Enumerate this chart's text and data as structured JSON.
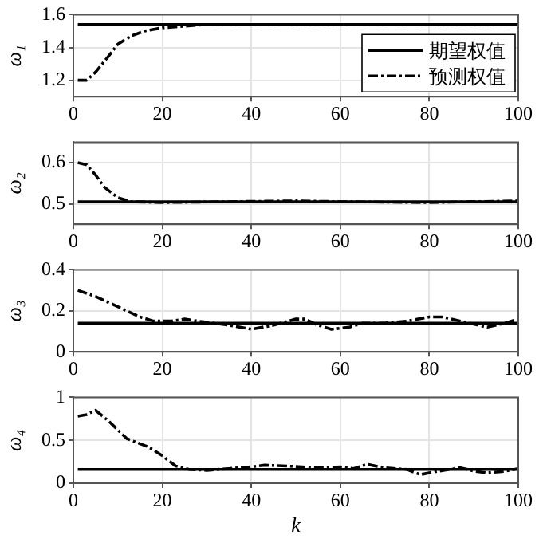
{
  "chart_data": [
    {
      "type": "line",
      "ylabel": "ω₁",
      "xlim": [
        0,
        100
      ],
      "xticks": [
        0,
        20,
        40,
        60,
        80,
        100
      ],
      "ylim": [
        1.1,
        1.6
      ],
      "yticks": [
        1.2,
        1.4,
        1.6
      ],
      "grid": true,
      "legend": "bottom right",
      "marker": "none",
      "series": [
        {
          "name": "期望权值",
          "color": "#000000",
          "line_style": "solid",
          "x": [
            1,
            100
          ],
          "values": [
            1.54,
            1.54
          ]
        },
        {
          "name": "预测权值",
          "color": "#000000",
          "line_style": "dashdot",
          "x": [
            1,
            3,
            5,
            8,
            10,
            13,
            16,
            20,
            25,
            30,
            50,
            100
          ],
          "values": [
            1.2,
            1.2,
            1.25,
            1.35,
            1.42,
            1.47,
            1.5,
            1.52,
            1.53,
            1.54,
            1.54,
            1.54
          ]
        }
      ]
    },
    {
      "type": "line",
      "ylabel": "ω₂",
      "xlim": [
        0,
        100
      ],
      "xticks": [
        0,
        20,
        40,
        60,
        80,
        100
      ],
      "ylim": [
        0.45,
        0.65
      ],
      "yticks": [
        0.5,
        0.6
      ],
      "grid": true,
      "marker": "none",
      "series": [
        {
          "color": "#000000",
          "line_style": "solid",
          "x": [
            1,
            100
          ],
          "values": [
            0.505,
            0.505
          ]
        },
        {
          "color": "#000000",
          "line_style": "dashdot",
          "x": [
            1,
            3,
            5,
            7,
            10,
            13,
            20,
            50,
            60,
            80,
            100
          ],
          "values": [
            0.6,
            0.595,
            0.57,
            0.54,
            0.515,
            0.505,
            0.503,
            0.507,
            0.505,
            0.503,
            0.507
          ]
        }
      ]
    },
    {
      "type": "line",
      "ylabel": "ω₃",
      "xlim": [
        0,
        100
      ],
      "xticks": [
        0,
        20,
        40,
        60,
        80,
        100
      ],
      "ylim": [
        0,
        0.4
      ],
      "yticks": [
        0,
        0.2,
        0.4
      ],
      "grid": true,
      "marker": "none",
      "series": [
        {
          "color": "#000000",
          "line_style": "solid",
          "x": [
            1,
            100
          ],
          "values": [
            0.14,
            0.14
          ]
        },
        {
          "color": "#000000",
          "line_style": "dashdot",
          "x": [
            1,
            5,
            10,
            15,
            18,
            22,
            25,
            28,
            35,
            40,
            45,
            50,
            52,
            55,
            58,
            62,
            65,
            70,
            75,
            80,
            83,
            87,
            93,
            97,
            100
          ],
          "values": [
            0.3,
            0.27,
            0.22,
            0.17,
            0.15,
            0.15,
            0.16,
            0.15,
            0.13,
            0.11,
            0.13,
            0.16,
            0.16,
            0.13,
            0.11,
            0.12,
            0.14,
            0.14,
            0.15,
            0.17,
            0.17,
            0.15,
            0.12,
            0.14,
            0.16
          ]
        }
      ]
    },
    {
      "type": "line",
      "ylabel": "ω₄",
      "xlabel": "k",
      "xlim": [
        0,
        100
      ],
      "xticks": [
        0,
        20,
        40,
        60,
        80,
        100
      ],
      "ylim": [
        0,
        1
      ],
      "yticks": [
        0,
        0.5,
        1
      ],
      "grid": true,
      "marker": "none",
      "series": [
        {
          "color": "#000000",
          "line_style": "solid",
          "x": [
            1,
            100
          ],
          "values": [
            0.16,
            0.16
          ]
        },
        {
          "color": "#000000",
          "line_style": "dashdot",
          "x": [
            1,
            3,
            5,
            8,
            12,
            17,
            20,
            23,
            26,
            30,
            35,
            40,
            43,
            48,
            55,
            60,
            63,
            66,
            70,
            75,
            78,
            82,
            87,
            90,
            93,
            97,
            100
          ],
          "values": [
            0.78,
            0.8,
            0.85,
            0.72,
            0.52,
            0.42,
            0.32,
            0.2,
            0.16,
            0.15,
            0.17,
            0.19,
            0.21,
            0.2,
            0.18,
            0.19,
            0.17,
            0.22,
            0.18,
            0.16,
            0.1,
            0.14,
            0.18,
            0.14,
            0.12,
            0.14,
            0.17
          ]
        }
      ]
    }
  ]
}
